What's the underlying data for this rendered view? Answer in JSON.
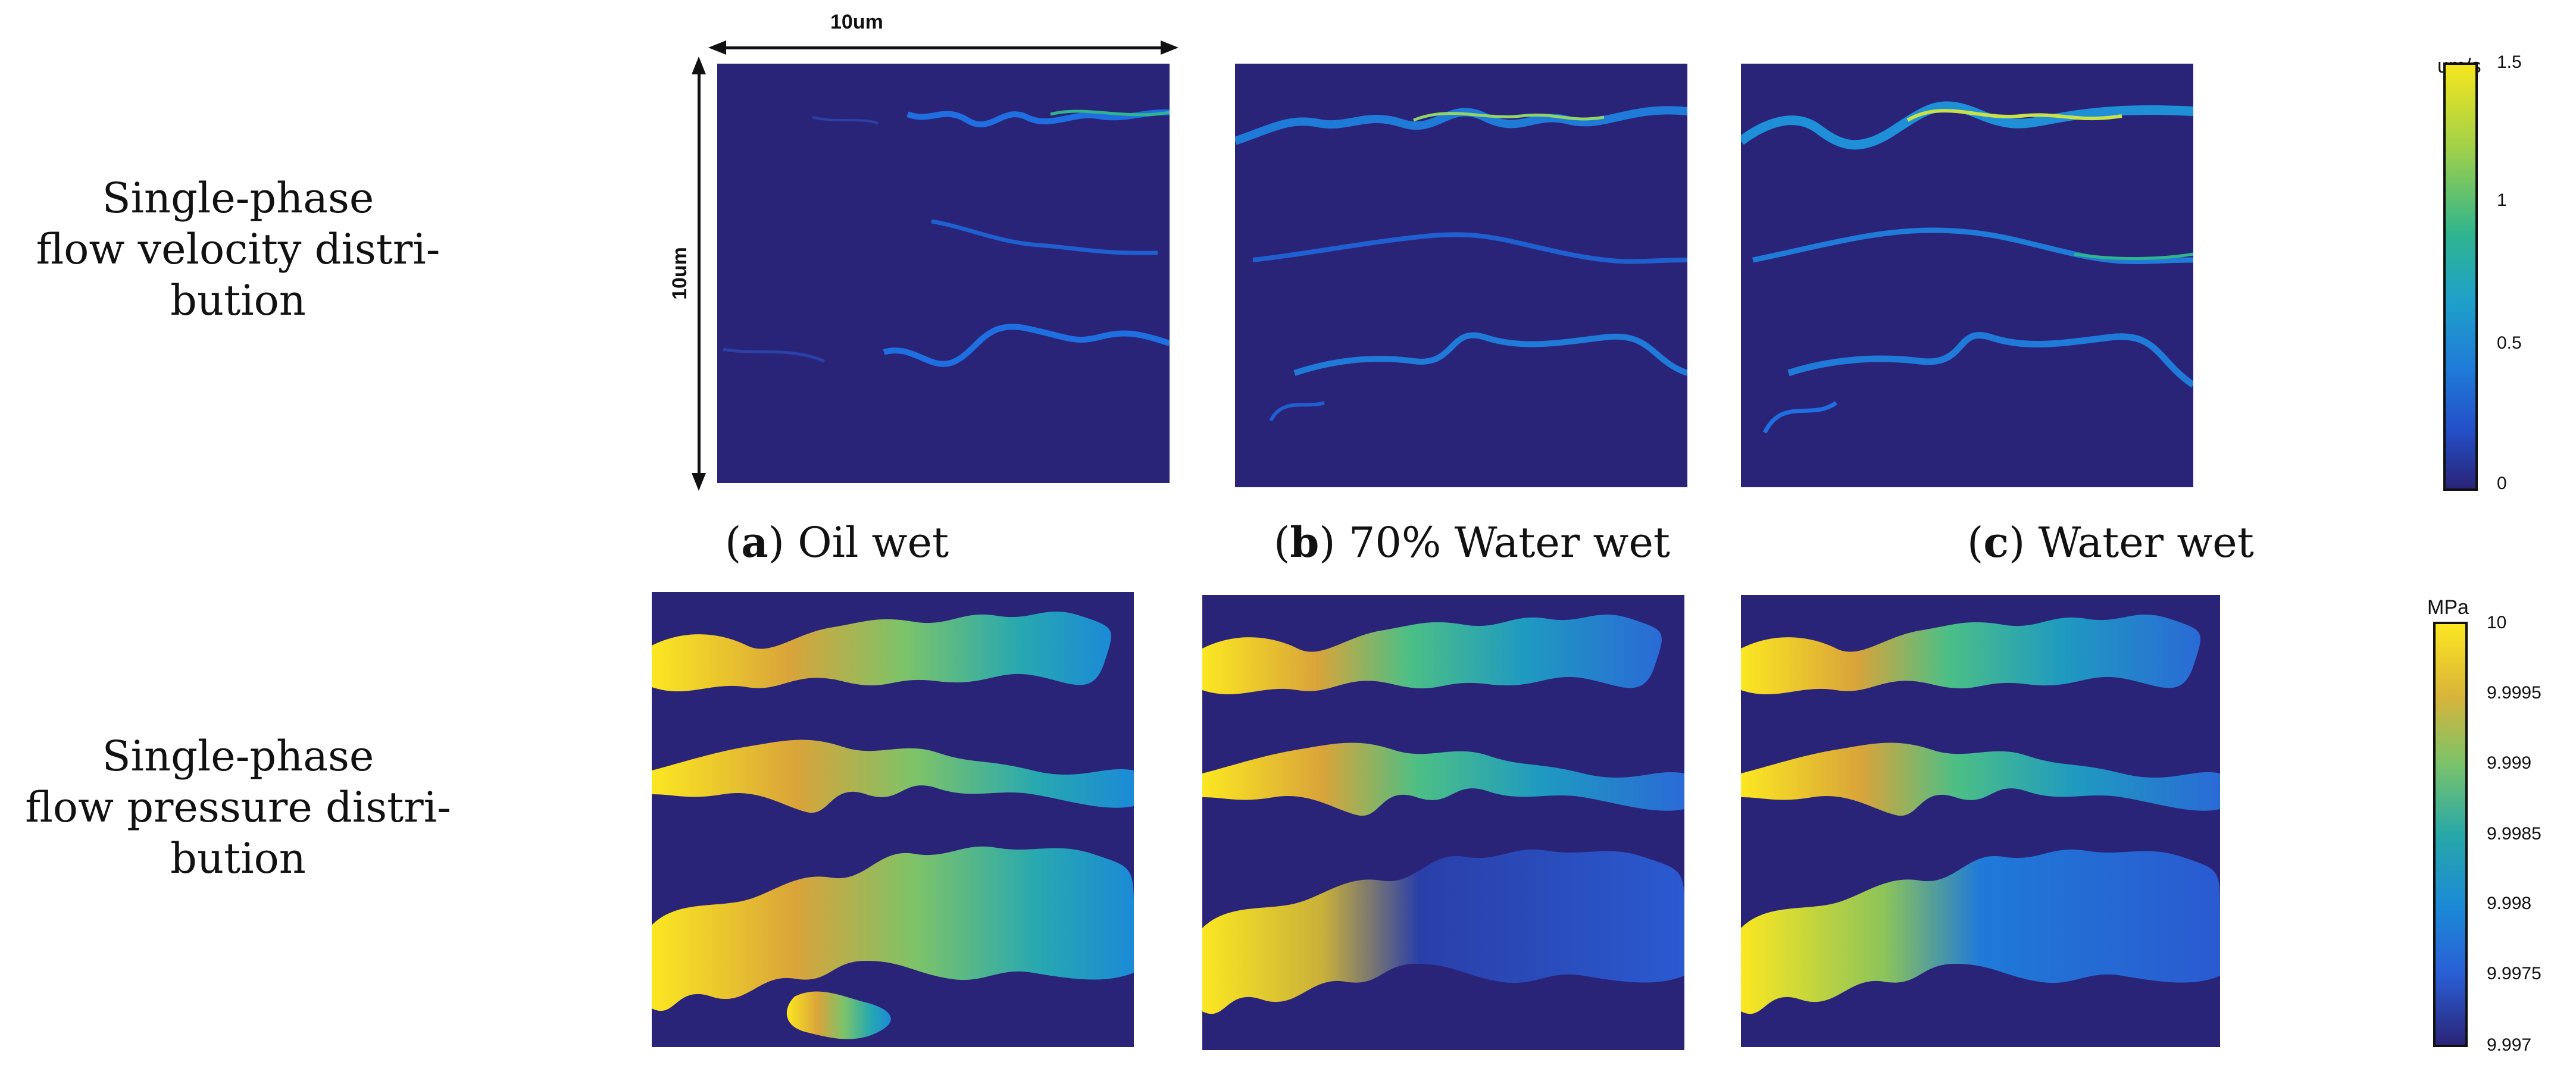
{
  "rows": {
    "velocity": {
      "label_lines": [
        "Single-phase",
        "flow velocity distri-",
        "bution"
      ]
    },
    "pressure": {
      "label_lines": [
        "Single-phase",
        "flow pressure distri-",
        "bution"
      ]
    }
  },
  "captions": [
    {
      "letter": "a",
      "text": ") Oil wet",
      "open": "("
    },
    {
      "letter": "b",
      "text": ") 70% Water wet",
      "open": "("
    },
    {
      "letter": "c",
      "text": ") Water wet",
      "open": "("
    }
  ],
  "scale": {
    "horizontal": "10um",
    "vertical": "10um"
  },
  "velocity_colorbar": {
    "unit": "um/s",
    "ticks": [
      "1.5",
      "1",
      "0.5",
      "0"
    ],
    "colors": [
      "#f5e61e",
      "#2fb48e",
      "#1f7ad8",
      "#2a2478"
    ]
  },
  "pressure_colorbar": {
    "unit": "MPa",
    "ticks": [
      "10",
      "9.9995",
      "9.999",
      "9.9985",
      "9.998",
      "9.9975",
      "9.997"
    ],
    "colors": [
      "#fbe722",
      "#d9b43a",
      "#7cc36a",
      "#28a8a8",
      "#1b8ad6",
      "#2a5fd6",
      "#2a2478"
    ]
  }
}
